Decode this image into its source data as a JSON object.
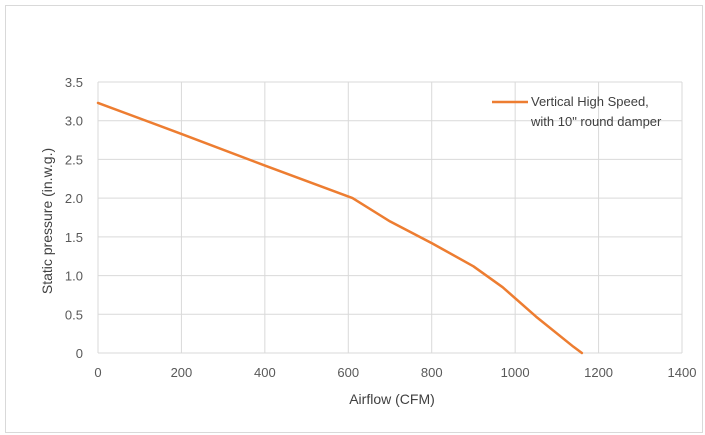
{
  "chart_data": {
    "type": "line",
    "title": "",
    "xlabel": "Airflow (CFM)",
    "ylabel": "Static pressure (in.w.g.)",
    "xlim": [
      0,
      1400
    ],
    "ylim": [
      0,
      3.5
    ],
    "x_ticks": [
      0,
      200,
      400,
      600,
      800,
      1000,
      1200,
      1400
    ],
    "y_ticks": [
      0,
      0.5,
      1.0,
      1.5,
      2.0,
      2.5,
      3.0,
      3.5
    ],
    "x_tick_labels": [
      "0",
      "200",
      "400",
      "600",
      "800",
      "1000",
      "1200",
      "1400"
    ],
    "y_tick_labels": [
      "0",
      "0.5",
      "1.0",
      "1.5",
      "2.0",
      "2.5",
      "3.0",
      "3.5"
    ],
    "grid": true,
    "legend_position": "top-right",
    "series": [
      {
        "name": "Vertical High Speed, with 10\" round damper",
        "legend_lines": [
          "Vertical High Speed,",
          "with 10\" round damper"
        ],
        "color": "#ed7d31",
        "x": [
          0,
          200,
          400,
          610,
          700,
          800,
          900,
          970,
          1050,
          1140,
          1160
        ],
        "y": [
          3.23,
          2.83,
          2.42,
          2.0,
          1.7,
          1.42,
          1.12,
          0.85,
          0.47,
          0.08,
          0.0
        ]
      }
    ]
  }
}
